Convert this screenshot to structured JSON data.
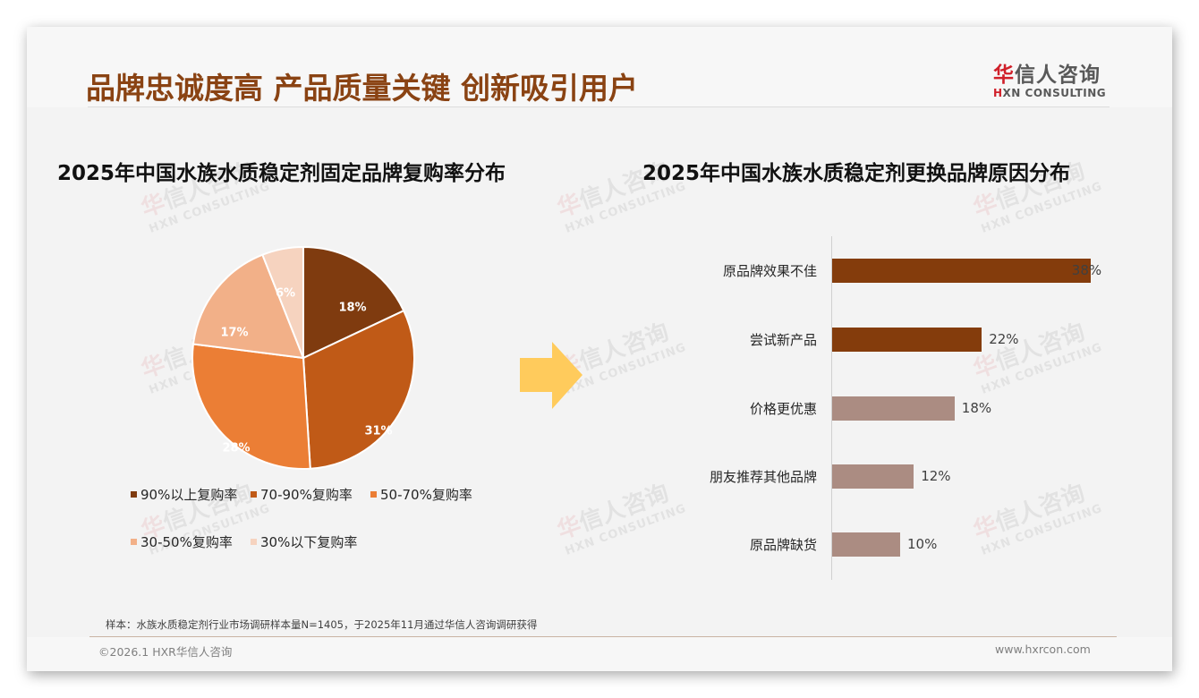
{
  "header": {
    "title": "品牌忠诚度高 产品质量关键 创新吸引用户",
    "logo_cn_first": "华",
    "logo_cn_rest": "信人咨询",
    "logo_en_first": "H",
    "logo_en_rest": "XN CONSULTING"
  },
  "watermark": {
    "cn_first": "华",
    "cn_rest": "信人咨询",
    "en": "HXN CONSULTING"
  },
  "left_section": {
    "title": "2025年中国水族水质稳定剂固定品牌复购率分布"
  },
  "right_section": {
    "title": "2025年中国水族水质稳定剂更换品牌原因分布"
  },
  "colors": {
    "title_brown": "#8a4313",
    "pie": [
      "#7f3b0f",
      "#c05a17",
      "#eb7e35",
      "#f2b088",
      "#f6d3bf"
    ],
    "bar_dark": "#843c0c",
    "bar_light": "#ab8c82",
    "arrow": "#ffcb5c",
    "logo_red": "#d0202a"
  },
  "chart_data": [
    {
      "type": "pie",
      "title": "2025年中国水族水质稳定剂固定品牌复购率分布",
      "categories": [
        "90%以上复购率",
        "70-90%复购率",
        "50-70%复购率",
        "30-50%复购率",
        "30%以下复购率"
      ],
      "values": [
        18,
        31,
        28,
        17,
        6
      ],
      "labels": [
        "18%",
        "31%",
        "28%",
        "17%",
        "6%"
      ],
      "legend_position": "bottom",
      "start_angle": "12 o'clock, clockwise"
    },
    {
      "type": "bar",
      "orientation": "horizontal",
      "title": "2025年中国水族水质稳定剂更换品牌原因分布",
      "categories": [
        "原品牌效果不佳",
        "尝试新产品",
        "价格更优惠",
        "朋友推荐其他品牌",
        "原品牌缺货"
      ],
      "values": [
        38,
        22,
        18,
        12,
        10
      ],
      "labels": [
        "38%",
        "22%",
        "18%",
        "12%",
        "10%"
      ],
      "xlabel": "",
      "ylabel": "",
      "grid": false
    }
  ],
  "footer": {
    "note": "样本：水族水质稳定剂行业市场调研样本量N=1405，于2025年11月通过华信人咨询调研获得",
    "copyright": "©2026.1 HXR华信人咨询",
    "website": "www.hxrcon.com"
  }
}
